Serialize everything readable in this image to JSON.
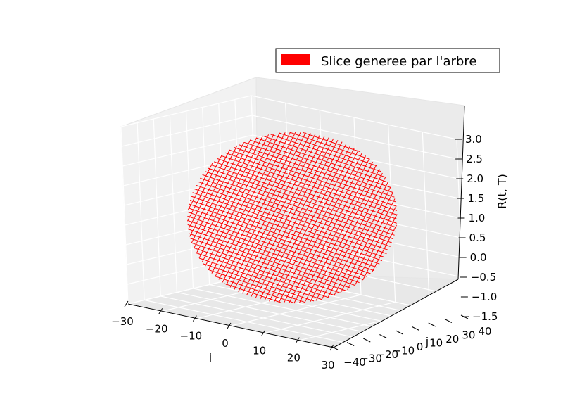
{
  "chart_data": {
    "type": "surface3d",
    "title": "",
    "legend": {
      "placement": "top-right",
      "entries": [
        {
          "label": "Slice generee par l'arbre",
          "color": "#ff0000"
        }
      ]
    },
    "axes": {
      "x": {
        "label": "i",
        "range": [
          -30,
          30
        ],
        "ticks": [
          -30,
          -20,
          -10,
          0,
          10,
          20,
          30
        ],
        "tick_labels": [
          "−30",
          "−20",
          "−10",
          "0",
          "10",
          "20",
          "30"
        ]
      },
      "y": {
        "label": "j",
        "range": [
          -40,
          40
        ],
        "ticks": [
          -40,
          -30,
          -20,
          -10,
          0,
          10,
          20,
          30,
          40
        ],
        "tick_labels": [
          "−40",
          "−30",
          "−20",
          "−10",
          "0",
          "10",
          "20",
          "30",
          "40"
        ]
      },
      "z": {
        "label": "R(t, T)",
        "range": [
          -1.5,
          3.0
        ],
        "ticks": [
          -1.5,
          -1.0,
          -0.5,
          0.0,
          0.5,
          1.0,
          1.5,
          2.0,
          2.5,
          3.0
        ],
        "tick_labels": [
          "−1.5",
          "−1.0",
          "−0.5",
          "0.0",
          "0.5",
          "1.0",
          "1.5",
          "2.0",
          "2.5",
          "3.0"
        ]
      }
    },
    "grid": true,
    "series": [
      {
        "name": "Slice generee par l'arbre",
        "color": "#ff0000",
        "style": "wireframe",
        "surface": {
          "shape": "elliptical slice",
          "x_range": [
            -28,
            28
          ],
          "y_range": [
            -27,
            27
          ],
          "z_range": [
            -1.2,
            2.9
          ]
        }
      }
    ]
  }
}
